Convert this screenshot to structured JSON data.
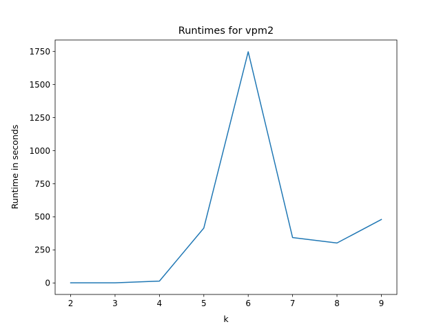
{
  "colors": {
    "series": "#1f77b4",
    "axis": "#000000",
    "background": "#ffffff"
  },
  "chart_data": {
    "type": "line",
    "title": "Runtimes for vpm2",
    "xlabel": "k",
    "ylabel": "Runtime in seconds",
    "grid": false,
    "legend": "none",
    "xlim": [
      1.65,
      9.35
    ],
    "ylim": [
      -87,
      1837
    ],
    "x_ticks": [
      2,
      3,
      4,
      5,
      6,
      7,
      8,
      9
    ],
    "x_tick_labels": [
      "2",
      "3",
      "4",
      "5",
      "6",
      "7",
      "8",
      "9"
    ],
    "y_ticks": [
      0,
      250,
      500,
      750,
      1000,
      1250,
      1500,
      1750
    ],
    "y_tick_labels": [
      "0",
      "250",
      "500",
      "750",
      "1000",
      "1250",
      "1500",
      "1750"
    ],
    "series": [
      {
        "name": "vpm2",
        "x": [
          2,
          3,
          4,
          5,
          6,
          7,
          8,
          9
        ],
        "values": [
          1,
          1,
          14,
          415,
          1748,
          343,
          302,
          480
        ]
      }
    ]
  }
}
